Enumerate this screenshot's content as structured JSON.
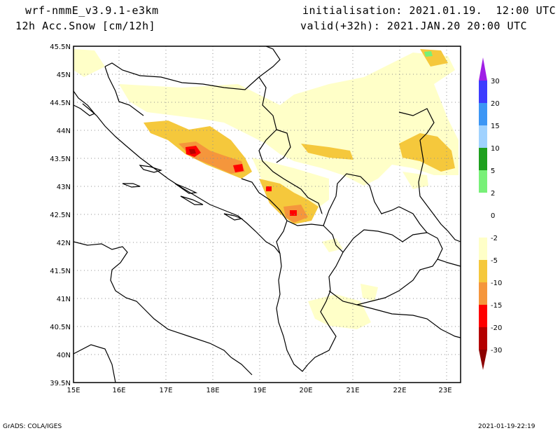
{
  "header": {
    "model": "wrf-nmmE_v3.9.1-e3km",
    "field": "12h Acc.Snow [cm/12h]",
    "init": "initialisation: 2021.01.19.  12:00 UTC",
    "valid": "valid(+32h): 2021.JAN.20 20:00 UTC"
  },
  "axes": {
    "lat_labels": [
      "45.5N",
      "45N",
      "44.5N",
      "44N",
      "43.5N",
      "43N",
      "42.5N",
      "42N",
      "41.5N",
      "41N",
      "40.5N",
      "40N",
      "39.5N"
    ],
    "lon_labels": [
      "15E",
      "16E",
      "17E",
      "18E",
      "19E",
      "20E",
      "21E",
      "22E",
      "23E"
    ]
  },
  "colorbar": {
    "labels": [
      "30",
      "20",
      "15",
      "10",
      "5",
      "2",
      "0",
      "-2",
      "-5",
      "-10",
      "-15",
      "-20",
      "-30"
    ],
    "colors": {
      "top_arrow": "#a01ee6",
      "c30": "#3c3cff",
      "c20": "#3c96f5",
      "c15": "#a0d2ff",
      "c10": "#1ea01e",
      "c5": "#78f078",
      "c2": "#ffffff",
      "cm2": "#ffffc8",
      "cm5": "#f5c83c",
      "cm10": "#f5963c",
      "cm15": "#ff0000",
      "cm20": "#b40000",
      "bottom_arrow": "#8c0000"
    }
  },
  "footer": {
    "left": "GrADS: COLA/IGES",
    "right": "2021-01-19-22:19"
  }
}
